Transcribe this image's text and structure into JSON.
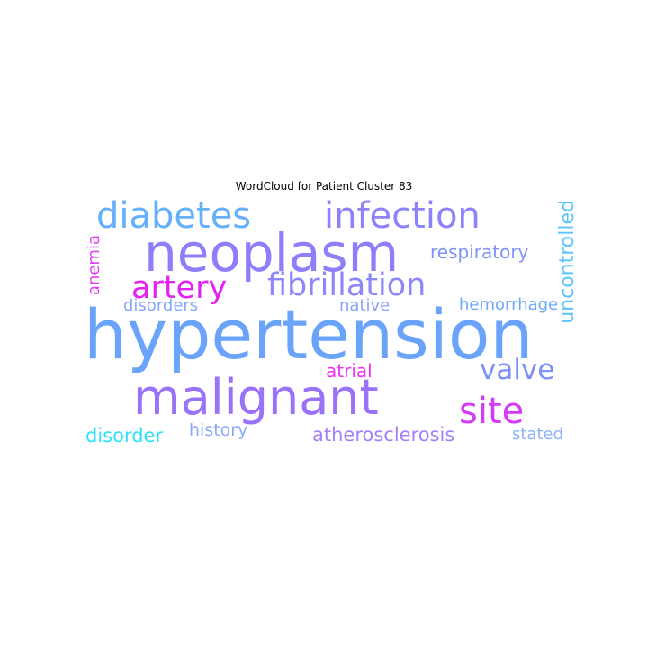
{
  "title": "WordCloud for Patient Cluster 83",
  "words": [
    {
      "text": "hypertension",
      "color": "#6aa3fa"
    },
    {
      "text": "neoplasm",
      "color": "#8d7ffa"
    },
    {
      "text": "malignant",
      "color": "#9a72f8"
    },
    {
      "text": "infection",
      "color": "#8c83fa"
    },
    {
      "text": "diabetes",
      "color": "#66b0fb"
    },
    {
      "text": "fibrillation",
      "color": "#8a88fa"
    },
    {
      "text": "artery",
      "color": "#e323f4"
    },
    {
      "text": "site",
      "color": "#d23cf4"
    },
    {
      "text": "valve",
      "color": "#7c90fa"
    },
    {
      "text": "uncontrolled",
      "color": "#5fc4fb"
    },
    {
      "text": "respiratory",
      "color": "#7e92fa"
    },
    {
      "text": "anemia",
      "color": "#e23df3"
    },
    {
      "text": "disorders",
      "color": "#84a7fa"
    },
    {
      "text": "native",
      "color": "#8ba2fa"
    },
    {
      "text": "hemorrhage",
      "color": "#6ea9fa"
    },
    {
      "text": "atrial",
      "color": "#f22ff2"
    },
    {
      "text": "disorder",
      "color": "#2fe0f7"
    },
    {
      "text": "history",
      "color": "#8aa9fa"
    },
    {
      "text": "atherosclerosis",
      "color": "#a47ff8"
    },
    {
      "text": "stated",
      "color": "#8fb2fb"
    }
  ]
}
